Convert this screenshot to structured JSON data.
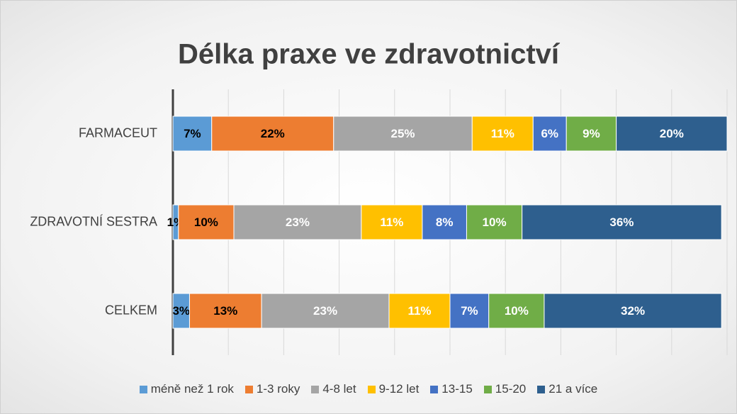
{
  "chart_data": {
    "type": "stacked_bar_horizontal",
    "title": "Délka praxe ve zdravotnictví",
    "categories": [
      "FARMACEUT",
      "ZDRAVOTNÍ SESTRA",
      "CELKEM"
    ],
    "xlim": [
      0,
      100
    ],
    "xticks": [
      0,
      10,
      20,
      30,
      40,
      50,
      60,
      70,
      80,
      90,
      100
    ],
    "grid": true,
    "legend": "bottom",
    "series": [
      {
        "name": "méně než 1 rok",
        "color": "#5b9bd5",
        "label_color": "#000000",
        "values": [
          7,
          1,
          3
        ],
        "value_labels": [
          "7%",
          "1%",
          "3%"
        ]
      },
      {
        "name": "1-3 roky",
        "color": "#ed7d31",
        "label_color": "#000000",
        "values": [
          22,
          10,
          13
        ],
        "value_labels": [
          "22%",
          "10%",
          "13%"
        ]
      },
      {
        "name": "4-8 let",
        "color": "#a5a5a5",
        "label_color": "#ffffff",
        "values": [
          25,
          23,
          23
        ],
        "value_labels": [
          "25%",
          "23%",
          "23%"
        ]
      },
      {
        "name": "9-12 let",
        "color": "#ffc000",
        "label_color": "#ffffff",
        "values": [
          11,
          11,
          11
        ],
        "value_labels": [
          "11%",
          "11%",
          "11%"
        ]
      },
      {
        "name": "13-15",
        "color": "#4472c4",
        "label_color": "#ffffff",
        "values": [
          6,
          8,
          7
        ],
        "value_labels": [
          "6%",
          "8%",
          "7%"
        ]
      },
      {
        "name": "15-20",
        "color": "#70ad47",
        "label_color": "#ffffff",
        "values": [
          9,
          10,
          10
        ],
        "value_labels": [
          "9%",
          "10%",
          "10%"
        ]
      },
      {
        "name": "21 a více",
        "color": "#2e5f8e",
        "label_color": "#ffffff",
        "values": [
          20,
          36,
          32
        ],
        "value_labels": [
          "20%",
          "36%",
          "32%"
        ]
      }
    ]
  }
}
